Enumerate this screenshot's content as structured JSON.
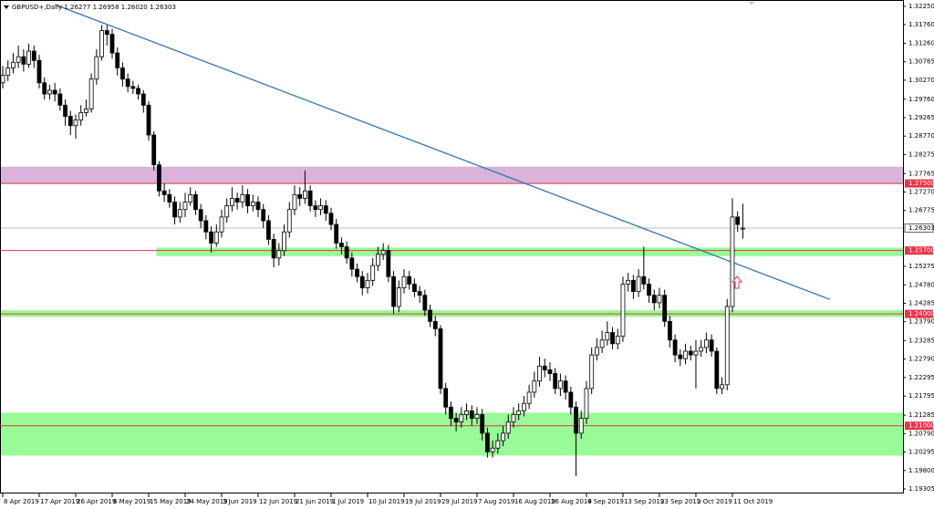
{
  "chart_data": {
    "type": "candlestick",
    "header": "GBPUSD+,Daily 1.26277 1.26958 1.26020 1.26303",
    "categories": [
      "8 Apr 2019",
      null,
      null,
      null,
      null,
      null,
      null,
      "17 Apr 2019",
      null,
      null,
      null,
      null,
      null,
      null,
      "26 Apr 2019",
      null,
      null,
      null,
      null,
      null,
      null,
      "6 May 2019",
      null,
      null,
      null,
      null,
      null,
      null,
      "15 May 2019",
      null,
      null,
      null,
      null,
      null,
      null,
      "24 May 2019",
      null,
      null,
      null,
      null,
      null,
      null,
      "3 Jun 2019",
      null,
      null,
      null,
      null,
      null,
      null,
      "12 Jun 2019",
      null,
      null,
      null,
      null,
      null,
      null,
      "21 Jun 2019",
      null,
      null,
      null,
      null,
      null,
      null,
      "1 Jul 2019",
      null,
      null,
      null,
      null,
      null,
      null,
      "10 Jul 2019",
      null,
      null,
      null,
      null,
      null,
      null,
      "19 Jul 2019",
      null,
      null,
      null,
      null,
      null,
      null,
      "29 Jul 2019",
      null,
      null,
      null,
      null,
      null,
      null,
      "7 Aug 2019",
      null,
      null,
      null,
      null,
      null,
      null,
      "16 Aug 2019",
      null,
      null,
      null,
      null,
      null,
      null,
      "26 Aug 2019",
      null,
      null,
      null,
      null,
      null,
      null,
      "4 Sep 2019",
      null,
      null,
      null,
      null,
      null,
      null,
      "13 Sep 2019",
      null,
      null,
      null,
      null,
      null,
      null,
      "23 Sep 2019",
      null,
      null,
      null,
      null,
      null,
      null,
      "2 Oct 2019",
      null,
      null,
      null,
      null,
      null,
      null,
      "11 Oct 2019",
      null,
      null
    ],
    "open": [
      1.302,
      1.304,
      1.306,
      1.3075,
      1.309,
      1.307,
      1.3105,
      1.308,
      1.302,
      1.299,
      1.3,
      1.299,
      1.296,
      1.293,
      1.2905,
      1.292,
      1.294,
      1.295,
      1.303,
      1.309,
      1.316,
      1.315,
      1.31,
      1.306,
      1.303,
      1.301,
      1.3005,
      1.299,
      1.296,
      1.288,
      1.28,
      1.273,
      1.272,
      1.27,
      1.266,
      1.268,
      1.27,
      1.272,
      1.268,
      1.265,
      1.262,
      1.259,
      1.262,
      1.266,
      1.269,
      1.271,
      1.27,
      1.272,
      1.269,
      1.27,
      1.268,
      1.265,
      1.26,
      1.255,
      1.257,
      1.262,
      1.268,
      1.272,
      1.271,
      1.273,
      1.269,
      1.268,
      1.269,
      1.267,
      1.264,
      1.259,
      1.258,
      1.255,
      1.252,
      1.25,
      1.247,
      1.249,
      1.253,
      1.256,
      1.257,
      1.25,
      1.242,
      1.247,
      1.25,
      1.248,
      1.246,
      1.245,
      1.241,
      1.238,
      1.236,
      1.22,
      1.215,
      1.212,
      1.211,
      1.213,
      1.214,
      1.212,
      1.213,
      1.208,
      1.203,
      1.204,
      1.206,
      1.208,
      1.211,
      1.213,
      1.214,
      1.216,
      1.219,
      1.222,
      1.226,
      1.225,
      1.224,
      1.22,
      1.222,
      1.219,
      1.215,
      1.208,
      1.212,
      1.22,
      1.229,
      1.231,
      1.233,
      1.235,
      1.232,
      1.234,
      1.248,
      1.249,
      1.246,
      1.25,
      1.248,
      1.245,
      1.243,
      1.245,
      1.238,
      1.233,
      1.229,
      1.228,
      1.23,
      1.229,
      1.23,
      1.231,
      1.233,
      1.23,
      1.22,
      1.221,
      1.242,
      1.266,
      1.26277
    ],
    "high": [
      1.3065,
      1.308,
      1.31,
      1.312,
      1.311,
      1.3125,
      1.312,
      1.3095,
      1.3035,
      1.3015,
      1.302,
      1.3005,
      1.2975,
      1.2945,
      1.2935,
      1.296,
      1.2975,
      1.3045,
      1.311,
      1.3175,
      1.3175,
      1.3165,
      1.3115,
      1.3075,
      1.3045,
      1.3025,
      1.3015,
      1.3,
      1.297,
      1.289,
      1.281,
      1.275,
      1.2735,
      1.2715,
      1.27,
      1.2725,
      1.274,
      1.273,
      1.2695,
      1.2665,
      1.2635,
      1.264,
      1.268,
      1.271,
      1.274,
      1.2725,
      1.2745,
      1.2735,
      1.272,
      1.2715,
      1.2695,
      1.2665,
      1.2615,
      1.259,
      1.264,
      1.27,
      1.2745,
      1.274,
      1.2785,
      1.2745,
      1.2705,
      1.271,
      1.2705,
      1.2685,
      1.2655,
      1.2605,
      1.2595,
      1.2565,
      1.2535,
      1.2515,
      1.251,
      1.255,
      1.258,
      1.259,
      1.2585,
      1.2515,
      1.249,
      1.252,
      1.2515,
      1.2495,
      1.2475,
      1.2465,
      1.2425,
      1.2395,
      1.237,
      1.2215,
      1.2165,
      1.2135,
      1.215,
      1.216,
      1.2155,
      1.215,
      1.2145,
      1.2095,
      1.206,
      1.208,
      1.21,
      1.213,
      1.215,
      1.216,
      1.218,
      1.221,
      1.2245,
      1.2285,
      1.228,
      1.227,
      1.2255,
      1.224,
      1.2235,
      1.2205,
      1.2165,
      1.214,
      1.222,
      1.231,
      1.2335,
      1.2355,
      1.238,
      1.2365,
      1.236,
      1.25,
      1.251,
      1.2505,
      1.252,
      1.258,
      1.2495,
      1.2465,
      1.247,
      1.2465,
      1.2395,
      1.2345,
      1.2305,
      1.232,
      1.2315,
      1.233,
      1.233,
      1.235,
      1.2345,
      1.231,
      1.223,
      1.244,
      1.271,
      1.2675,
      1.26958
    ],
    "low": [
      1.3005,
      1.3025,
      1.3045,
      1.306,
      1.305,
      1.306,
      1.306,
      1.3005,
      1.2975,
      1.2975,
      1.297,
      1.2945,
      1.2905,
      1.288,
      1.287,
      1.2905,
      1.293,
      1.294,
      1.3015,
      1.308,
      1.312,
      1.3085,
      1.304,
      1.301,
      1.2995,
      1.299,
      1.2975,
      1.294,
      1.2865,
      1.2785,
      1.2715,
      1.27,
      1.2685,
      1.264,
      1.2645,
      1.266,
      1.269,
      1.2665,
      1.263,
      1.26,
      1.2565,
      1.258,
      1.2605,
      1.2645,
      1.2675,
      1.268,
      1.2685,
      1.267,
      1.2675,
      1.266,
      1.263,
      1.2585,
      1.2525,
      1.253,
      1.2555,
      1.2605,
      1.2665,
      1.269,
      1.2695,
      1.2675,
      1.266,
      1.2665,
      1.265,
      1.2625,
      1.2575,
      1.256,
      1.2535,
      1.25,
      1.2485,
      1.245,
      1.2455,
      1.2475,
      1.2515,
      1.2545,
      1.2485,
      1.24,
      1.2405,
      1.2455,
      1.2465,
      1.2445,
      1.243,
      1.2395,
      1.2365,
      1.234,
      1.2185,
      1.213,
      1.21,
      1.2085,
      1.2095,
      1.2115,
      1.21,
      1.2105,
      1.206,
      1.2015,
      1.2015,
      1.2025,
      1.2045,
      1.2065,
      1.2095,
      1.2115,
      1.2125,
      1.2145,
      1.2175,
      1.2205,
      1.223,
      1.222,
      1.2185,
      1.218,
      1.217,
      1.213,
      1.1965,
      1.2065,
      1.2105,
      1.2185,
      1.2275,
      1.2295,
      1.2315,
      1.2305,
      1.2305,
      1.2325,
      1.246,
      1.244,
      1.2445,
      1.2465,
      1.243,
      1.241,
      1.2415,
      1.2365,
      1.231,
      1.227,
      1.226,
      1.2265,
      1.2275,
      1.22,
      1.2285,
      1.2295,
      1.2285,
      1.2185,
      1.2185,
      1.2195,
      1.2405,
      1.262,
      1.2602
    ],
    "close": [
      1.304,
      1.306,
      1.3075,
      1.309,
      1.307,
      1.3105,
      1.308,
      1.302,
      1.299,
      1.3,
      1.299,
      1.296,
      1.293,
      1.2905,
      1.292,
      1.294,
      1.295,
      1.303,
      1.309,
      1.316,
      1.315,
      1.31,
      1.306,
      1.303,
      1.301,
      1.3005,
      1.299,
      1.296,
      1.288,
      1.28,
      1.273,
      1.272,
      1.27,
      1.266,
      1.268,
      1.27,
      1.272,
      1.268,
      1.265,
      1.262,
      1.259,
      1.262,
      1.266,
      1.269,
      1.271,
      1.27,
      1.272,
      1.269,
      1.27,
      1.268,
      1.265,
      1.26,
      1.255,
      1.257,
      1.262,
      1.268,
      1.272,
      1.271,
      1.273,
      1.269,
      1.268,
      1.269,
      1.267,
      1.264,
      1.259,
      1.258,
      1.255,
      1.252,
      1.25,
      1.247,
      1.249,
      1.253,
      1.256,
      1.257,
      1.25,
      1.242,
      1.247,
      1.25,
      1.248,
      1.246,
      1.245,
      1.241,
      1.238,
      1.236,
      1.22,
      1.215,
      1.212,
      1.211,
      1.213,
      1.214,
      1.212,
      1.213,
      1.208,
      1.203,
      1.204,
      1.206,
      1.208,
      1.211,
      1.213,
      1.214,
      1.216,
      1.219,
      1.222,
      1.226,
      1.225,
      1.224,
      1.22,
      1.222,
      1.219,
      1.215,
      1.208,
      1.212,
      1.22,
      1.229,
      1.231,
      1.233,
      1.235,
      1.232,
      1.234,
      1.248,
      1.249,
      1.246,
      1.25,
      1.248,
      1.245,
      1.243,
      1.245,
      1.238,
      1.233,
      1.229,
      1.228,
      1.23,
      1.229,
      1.23,
      1.231,
      1.233,
      1.23,
      1.22,
      1.221,
      1.242,
      1.266,
      1.264,
      1.26303
    ],
    "up_color": "#ffffff",
    "down_color": "#000000",
    "ylim": [
      1.19305,
      1.3225
    ],
    "yticks": [
      {
        "value": 1.3225,
        "label": "1.32250"
      },
      {
        "value": 1.3176,
        "label": "1.31760"
      },
      {
        "value": 1.3126,
        "label": "1.31260"
      },
      {
        "value": 1.30765,
        "label": "1.30765"
      },
      {
        "value": 1.3027,
        "label": "1.30270"
      },
      {
        "value": 1.2976,
        "label": "1.29760"
      },
      {
        "value": 1.29265,
        "label": "1.29265"
      },
      {
        "value": 1.2877,
        "label": "1.28770"
      },
      {
        "value": 1.28275,
        "label": "1.28275"
      },
      {
        "value": 1.27765,
        "label": "1.27765"
      },
      {
        "value": 1.2727,
        "label": "1.27270"
      },
      {
        "value": 1.26775,
        "label": "1.26775"
      },
      {
        "value": 1.25275,
        "label": "1.25275"
      },
      {
        "value": 1.2478,
        "label": "1.24780"
      },
      {
        "value": 1.24285,
        "label": "1.24285"
      },
      {
        "value": 1.2379,
        "label": "1.23790"
      },
      {
        "value": 1.23285,
        "label": "1.23285"
      },
      {
        "value": 1.2279,
        "label": "1.22790"
      },
      {
        "value": 1.22295,
        "label": "1.22295"
      },
      {
        "value": 1.21795,
        "label": "1.21795"
      },
      {
        "value": 1.21285,
        "label": "1.21285"
      },
      {
        "value": 1.2079,
        "label": "1.20790"
      },
      {
        "value": 1.20295,
        "label": "1.20295"
      },
      {
        "value": 1.198,
        "label": "1.19800"
      },
      {
        "value": 1.19305,
        "label": "1.19305"
      }
    ],
    "levels": [
      {
        "value": 1.275,
        "label": "1.27500",
        "color": "#e8334a"
      },
      {
        "value": 1.257,
        "label": "1.25700",
        "color": "#e8334a"
      },
      {
        "value": 1.24,
        "label": "1.24000",
        "color": "#e8334a"
      },
      {
        "value": 1.21,
        "label": "1.21000",
        "color": "#e8334a"
      }
    ],
    "current": {
      "value": 1.26303,
      "label": "1.26303",
      "color": "#c0c0c0"
    },
    "zones": [
      {
        "from": 1.275,
        "to": 1.2795,
        "start": 0,
        "color": "#d9b3d9"
      },
      {
        "from": 1.2555,
        "to": 1.2578,
        "start": 30,
        "color": "#98fb98"
      },
      {
        "from": 1.2392,
        "to": 1.241,
        "start": 0,
        "color": "#98fb98"
      },
      {
        "from": 1.202,
        "to": 1.2135,
        "start": 0,
        "color": "#98fb98"
      }
    ],
    "trendline": {
      "x": [
        10,
        158.7
      ],
      "y": [
        1.323,
        1.2439
      ],
      "color": "#2e75b6"
    }
  }
}
